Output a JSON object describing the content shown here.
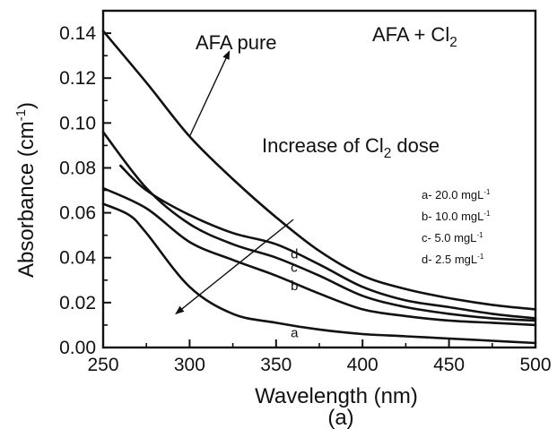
{
  "chart_data": {
    "type": "line",
    "caption": "(a)",
    "title": "",
    "inset_title": {
      "text": "AFA + Cl",
      "sub": "2"
    },
    "xlabel": "Wavelength (nm)",
    "ylabel": {
      "text": "Absorbance (cm",
      "sup": "-1",
      "end": ")"
    },
    "xlim": [
      250,
      500
    ],
    "ylim": [
      0,
      0.15
    ],
    "x_ticks": [
      250,
      300,
      350,
      400,
      450,
      500
    ],
    "x_tick_labels": [
      "250",
      "300",
      "350",
      "400",
      "450",
      "500"
    ],
    "y_ticks": [
      0,
      0.02,
      0.04,
      0.06,
      0.08,
      0.1,
      0.12,
      0.14
    ],
    "y_tick_labels": [
      "0.00",
      "0.02",
      "0.04",
      "0.06",
      "0.08",
      "0.10",
      "0.12",
      "0.14"
    ],
    "grid": false,
    "series": [
      {
        "name": "AFA pure",
        "label": "",
        "x": [
          250,
          275,
          300,
          325,
          350,
          375,
          400,
          425,
          450,
          475,
          500
        ],
        "y": [
          0.141,
          0.118,
          0.094,
          0.075,
          0.058,
          0.043,
          0.032,
          0.026,
          0.022,
          0.019,
          0.017
        ]
      },
      {
        "name": "d- 2.5 mgL-1",
        "label": "d",
        "x": [
          260,
          275,
          300,
          325,
          350,
          375,
          400,
          425,
          450,
          475,
          500
        ],
        "y": [
          0.081,
          0.07,
          0.059,
          0.051,
          0.046,
          0.037,
          0.027,
          0.021,
          0.018,
          0.015,
          0.013
        ]
      },
      {
        "name": "c- 5.0 mgL-1",
        "label": "c",
        "x": [
          250,
          275,
          300,
          325,
          350,
          375,
          400,
          425,
          450,
          475,
          500
        ],
        "y": [
          0.096,
          0.071,
          0.055,
          0.046,
          0.04,
          0.032,
          0.023,
          0.018,
          0.015,
          0.013,
          0.012
        ]
      },
      {
        "name": "b- 10.0 mgL-1",
        "label": "b",
        "x": [
          250,
          275,
          300,
          325,
          350,
          375,
          400,
          425,
          450,
          475,
          500
        ],
        "y": [
          0.071,
          0.062,
          0.047,
          0.039,
          0.032,
          0.024,
          0.017,
          0.014,
          0.012,
          0.011,
          0.01
        ]
      },
      {
        "name": "a- 20.0 mgL-1",
        "label": "a",
        "x": [
          250,
          265,
          275,
          300,
          325,
          350,
          375,
          400,
          425,
          450,
          475,
          500
        ],
        "y": [
          0.064,
          0.059,
          0.051,
          0.027,
          0.015,
          0.011,
          0.008,
          0.006,
          0.005,
          0.004,
          0.003,
          0.002
        ]
      }
    ],
    "legend": {
      "placement": "right",
      "items": [
        {
          "prefix": "a-  20.0 mgL",
          "sup": "-1"
        },
        {
          "prefix": "b-  10.0 mgL",
          "sup": "-1"
        },
        {
          "prefix": "c-  5.0 mgL",
          "sup": "-1"
        },
        {
          "prefix": "d-  2.5 mgL",
          "sup": "-1"
        }
      ]
    },
    "annotations": [
      {
        "id": "afa-pure",
        "text": "AFA pure",
        "sub": "",
        "end": "",
        "arrow_from": [
          300,
          0.094
        ],
        "arrow_to": [
          323,
          0.132
        ]
      },
      {
        "id": "cl2-dose",
        "text": "Increase of Cl",
        "sub": "2",
        "end": " dose",
        "arrow_from": [
          360,
          0.057
        ],
        "arrow_to": [
          292,
          0.015
        ]
      }
    ]
  }
}
